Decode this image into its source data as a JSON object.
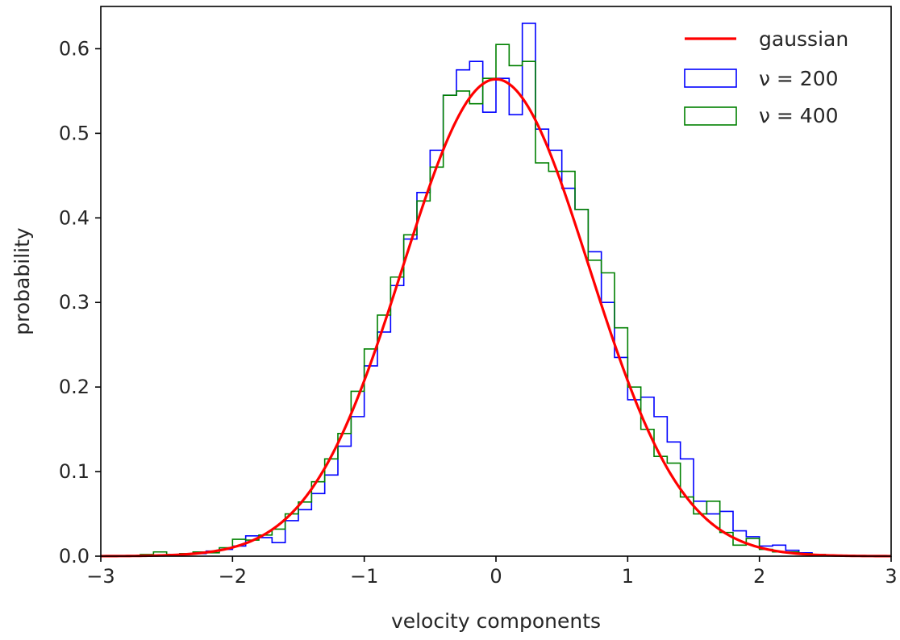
{
  "chart_data": {
    "type": "histogram",
    "title": "",
    "xlabel": "velocity components",
    "ylabel": "probability",
    "xlim": [
      -3,
      3
    ],
    "ylim": [
      0,
      0.65
    ],
    "xticks": [
      -3,
      -2,
      -1,
      0,
      1,
      2,
      3
    ],
    "xtick_labels": [
      "−3",
      "−2",
      "−1",
      "0",
      "1",
      "2",
      "3"
    ],
    "yticks": [
      0.0,
      0.1,
      0.2,
      0.3,
      0.4,
      0.5,
      0.6
    ],
    "ytick_labels": [
      "0.0",
      "0.1",
      "0.2",
      "0.3",
      "0.4",
      "0.5",
      "0.6"
    ],
    "grid": false,
    "legend_position": "top-right",
    "legend": [
      "gaussian",
      "ν = 200",
      "ν = 400"
    ],
    "gaussian": {
      "name": "gaussian",
      "color": "#ff0000",
      "mean": 0,
      "sigma": 0.7071,
      "peak": 0.564
    },
    "series": [
      {
        "name": "ν = 200",
        "color": "#0000ff",
        "bin_edges": [
          -2.7,
          -2.6,
          -2.5,
          -2.4,
          -2.3,
          -2.2,
          -2.1,
          -2.0,
          -1.9,
          -1.8,
          -1.7,
          -1.6,
          -1.5,
          -1.4,
          -1.3,
          -1.2,
          -1.1,
          -1.0,
          -0.9,
          -0.8,
          -0.7,
          -0.6,
          -0.5,
          -0.4,
          -0.3,
          -0.2,
          -0.1,
          0.0,
          0.1,
          0.2,
          0.3,
          0.4,
          0.5,
          0.6,
          0.7,
          0.8,
          0.9,
          1.0,
          1.1,
          1.2,
          1.3,
          1.4,
          1.5,
          1.6,
          1.7,
          1.8,
          1.9,
          2.0,
          2.1,
          2.2,
          2.3,
          2.4,
          2.5,
          2.6,
          2.7
        ],
        "values": [
          0.001,
          0.001,
          0.002,
          0.003,
          0.003,
          0.006,
          0.008,
          0.012,
          0.024,
          0.022,
          0.016,
          0.042,
          0.055,
          0.074,
          0.096,
          0.13,
          0.165,
          0.225,
          0.265,
          0.32,
          0.375,
          0.43,
          0.48,
          0.545,
          0.575,
          0.585,
          0.525,
          0.565,
          0.522,
          0.63,
          0.505,
          0.48,
          0.435,
          0.41,
          0.36,
          0.3,
          0.235,
          0.185,
          0.188,
          0.165,
          0.135,
          0.115,
          0.065,
          0.05,
          0.053,
          0.03,
          0.023,
          0.012,
          0.013,
          0.007,
          0.004,
          0.002,
          0.001,
          0.001
        ]
      },
      {
        "name": "ν = 400",
        "color": "#008000",
        "bin_edges": [
          -2.7,
          -2.6,
          -2.5,
          -2.4,
          -2.3,
          -2.2,
          -2.1,
          -2.0,
          -1.9,
          -1.8,
          -1.7,
          -1.6,
          -1.5,
          -1.4,
          -1.3,
          -1.2,
          -1.1,
          -1.0,
          -0.9,
          -0.8,
          -0.7,
          -0.6,
          -0.5,
          -0.4,
          -0.3,
          -0.2,
          -0.1,
          0.0,
          0.1,
          0.2,
          0.3,
          0.4,
          0.5,
          0.6,
          0.7,
          0.8,
          0.9,
          1.0,
          1.1,
          1.2,
          1.3,
          1.4,
          1.5,
          1.6,
          1.7,
          1.8,
          1.9,
          2.0,
          2.1,
          2.2,
          2.3,
          2.4,
          2.5,
          2.6,
          2.7
        ],
        "values": [
          0.002,
          0.005,
          0.002,
          0.003,
          0.005,
          0.004,
          0.01,
          0.02,
          0.019,
          0.025,
          0.032,
          0.05,
          0.064,
          0.088,
          0.115,
          0.145,
          0.195,
          0.245,
          0.285,
          0.33,
          0.38,
          0.42,
          0.46,
          0.545,
          0.55,
          0.535,
          0.565,
          0.605,
          0.58,
          0.585,
          0.465,
          0.455,
          0.455,
          0.41,
          0.35,
          0.335,
          0.27,
          0.2,
          0.15,
          0.118,
          0.11,
          0.07,
          0.05,
          0.065,
          0.028,
          0.013,
          0.021,
          0.008,
          0.005,
          0.005,
          0.003,
          0.002,
          0.001,
          0.001
        ]
      }
    ]
  }
}
